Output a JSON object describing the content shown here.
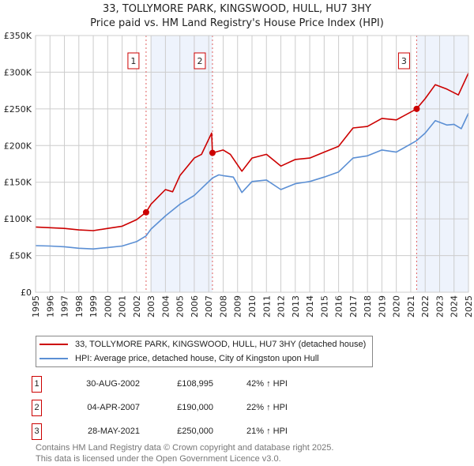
{
  "title": "33, TOLLYMORE PARK, KINGSWOOD, HULL, HU7 3HY",
  "subtitle": "Price paid vs. HM Land Registry's House Price Index (HPI)",
  "chart_data": {
    "type": "line",
    "title": "33, TOLLYMORE PARK, KINGSWOOD, HULL, HU7 3HY",
    "xlim": [
      1995,
      2025
    ],
    "ylim": [
      0,
      350000
    ],
    "grid": true,
    "x_ticks": [
      "1995",
      "1996",
      "1997",
      "1998",
      "1999",
      "2000",
      "2001",
      "2002",
      "2003",
      "2004",
      "2005",
      "2006",
      "2007",
      "2008",
      "2009",
      "2010",
      "2011",
      "2012",
      "2013",
      "2014",
      "2015",
      "2016",
      "2017",
      "2018",
      "2019",
      "2020",
      "2021",
      "2022",
      "2023",
      "2024",
      "2025"
    ],
    "y_ticks": [
      {
        "v": 0,
        "label": "£0"
      },
      {
        "v": 50000,
        "label": "£50K"
      },
      {
        "v": 100000,
        "label": "£100K"
      },
      {
        "v": 150000,
        "label": "£150K"
      },
      {
        "v": 200000,
        "label": "£200K"
      },
      {
        "v": 250000,
        "label": "£250K"
      },
      {
        "v": 300000,
        "label": "£300K"
      },
      {
        "v": 350000,
        "label": "£350K"
      }
    ],
    "series": [
      {
        "name": "33, TOLLYMORE PARK, KINGSWOOD, HULL, HU7 3HY (detached house)",
        "color": "#cc0000",
        "x": [
          1995,
          1996,
          1997,
          1998,
          1999,
          2000,
          2001,
          2002,
          2002.66,
          2003,
          2004,
          2004.5,
          2005,
          2006,
          2006.5,
          2007.2,
          2007.26,
          2008,
          2008.5,
          2009.3,
          2010,
          2011,
          2012,
          2013,
          2014,
          2015,
          2016,
          2017,
          2018,
          2019,
          2020,
          2021.4,
          2022,
          2022.7,
          2023.5,
          2024.3,
          2025
        ],
        "y": [
          89000,
          88000,
          87000,
          85000,
          84000,
          87000,
          90000,
          99000,
          108995,
          120000,
          140000,
          137000,
          159000,
          183000,
          188000,
          217000,
          190000,
          194000,
          188000,
          165000,
          183000,
          188000,
          172000,
          181000,
          183000,
          191000,
          199000,
          224000,
          226000,
          237000,
          235000,
          250000,
          264000,
          283000,
          277000,
          269000,
          299000
        ]
      },
      {
        "name": "HPI: Average price, detached house, City of Kingston upon Hull",
        "color": "#5b8fd4",
        "x": [
          1995,
          1996,
          1997,
          1998,
          1999,
          2000,
          2001,
          2002,
          2002.66,
          2003,
          2004,
          2005,
          2006,
          2007.26,
          2007.7,
          2008,
          2008.7,
          2009.3,
          2010,
          2011,
          2012,
          2013,
          2014,
          2015,
          2016,
          2017,
          2018,
          2019,
          2020,
          2021.4,
          2022,
          2022.7,
          2023.5,
          2024,
          2024.5,
          2025
        ],
        "y": [
          63500,
          63000,
          62000,
          60000,
          59000,
          61000,
          63000,
          69000,
          76800,
          86000,
          104000,
          120000,
          132000,
          155700,
          160000,
          159000,
          157000,
          136000,
          151000,
          153000,
          140000,
          148000,
          151000,
          157000,
          164000,
          183000,
          186000,
          194000,
          191000,
          206600,
          217000,
          234000,
          228000,
          229000,
          223000,
          244000
        ]
      }
    ],
    "sales": [
      {
        "label": "1",
        "x": 2002.66,
        "y": 108995
      },
      {
        "label": "2",
        "x": 2007.26,
        "y": 190000
      },
      {
        "label": "3",
        "x": 2021.41,
        "y": 250000
      }
    ],
    "shaded_ranges": [
      [
        2003.0,
        2007.26
      ],
      [
        2021.41,
        2025
      ]
    ]
  },
  "legend": {
    "property": "33, TOLLYMORE PARK, KINGSWOOD, HULL, HU7 3HY (detached house)",
    "hpi": "HPI: Average price, detached house, City of Kingston upon Hull"
  },
  "transactions": [
    {
      "num": "1",
      "date": "30-AUG-2002",
      "price": "£108,995",
      "hpi": "42% ↑ HPI"
    },
    {
      "num": "2",
      "date": "04-APR-2007",
      "price": "£190,000",
      "hpi": "22% ↑ HPI"
    },
    {
      "num": "3",
      "date": "28-MAY-2021",
      "price": "£250,000",
      "hpi": "21% ↑ HPI"
    }
  ],
  "footer": {
    "line1": "Contains HM Land Registry data © Crown copyright and database right 2025.",
    "line2": "This data is licensed under the Open Government Licence v3.0."
  }
}
